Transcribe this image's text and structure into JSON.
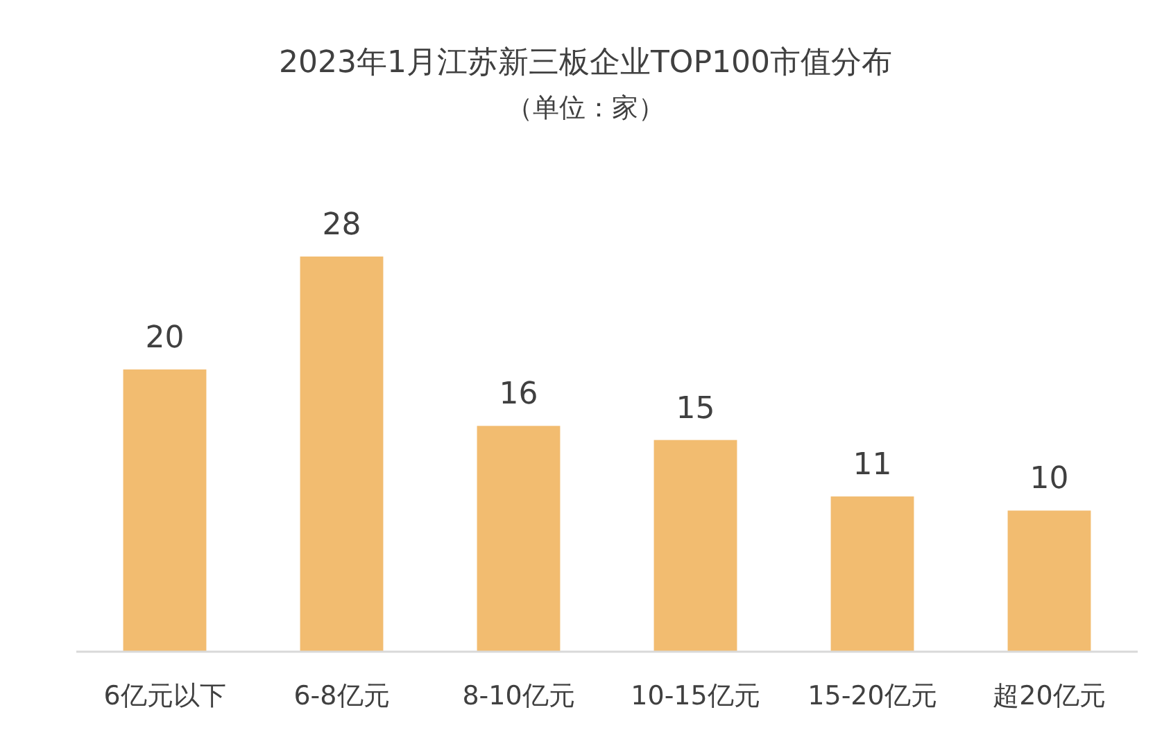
{
  "chart_data": {
    "type": "bar",
    "title": "2023年1月江苏新三板企业TOP100市值分布",
    "subtitle": "（单位：家）",
    "categories": [
      "6亿元以下",
      "6-8亿元",
      "8-10亿元",
      "10-15亿元",
      "15-20亿元",
      "超20亿元"
    ],
    "values": [
      20,
      28,
      16,
      15,
      11,
      10
    ],
    "color": "#f2bc70",
    "data_labels": true
  }
}
